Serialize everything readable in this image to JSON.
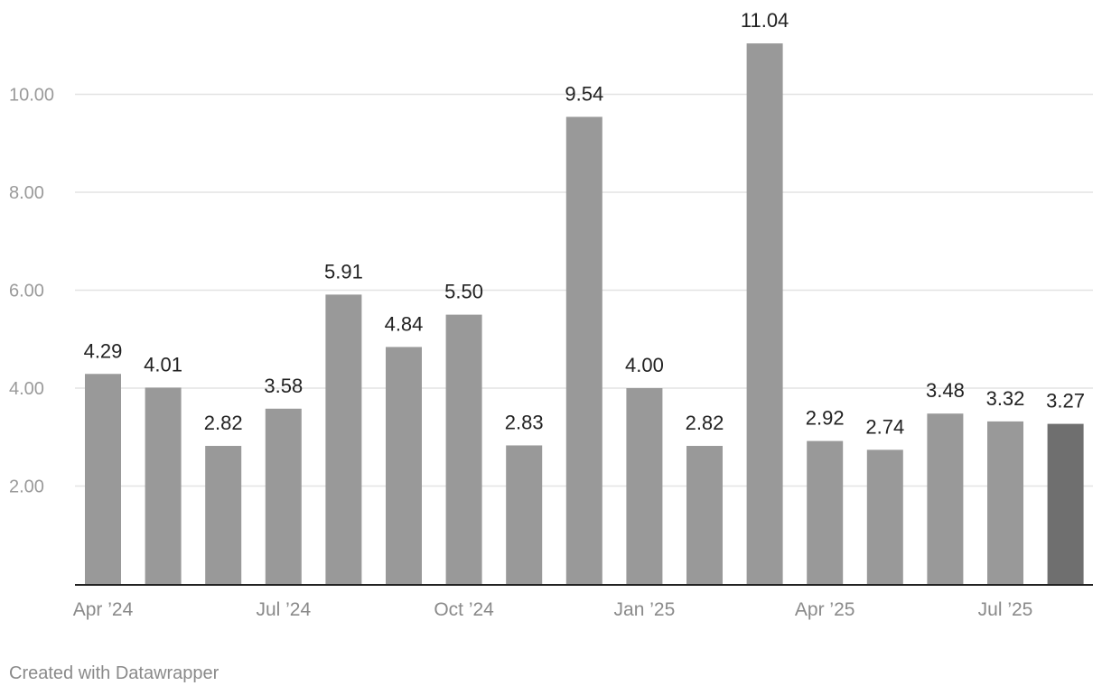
{
  "chart_data": {
    "type": "bar",
    "categories": [
      "Apr 2024",
      "May 2024",
      "Jun 2024",
      "Jul 2024",
      "Aug 2024",
      "Sep 2024",
      "Oct 2024",
      "Nov 2024",
      "Dec 2024",
      "Jan 2025",
      "Feb 2025",
      "Mar 2025",
      "Apr 2025",
      "May 2025",
      "Jun 2025",
      "Jul 2025",
      "Aug 2025"
    ],
    "values": [
      4.29,
      4.01,
      2.82,
      3.58,
      5.91,
      4.84,
      5.5,
      2.83,
      9.54,
      4.0,
      2.82,
      11.04,
      2.92,
      2.74,
      3.48,
      3.32,
      3.27
    ],
    "value_labels": [
      "4.29",
      "4.01",
      "2.82",
      "3.58",
      "5.91",
      "4.84",
      "5.50",
      "2.83",
      "9.54",
      "4.00",
      "2.82",
      "11.04",
      "2.92",
      "2.74",
      "3.48",
      "3.32",
      "3.27"
    ],
    "x_ticks": [
      {
        "label": "Apr ’24",
        "category": 0
      },
      {
        "label": "Jul ’24",
        "category": 3
      },
      {
        "label": "Oct ’24",
        "category": 6
      },
      {
        "label": "Jan ’25",
        "category": 9
      },
      {
        "label": "Apr ’25",
        "category": 12
      },
      {
        "label": "Jul ’25",
        "category": 15
      }
    ],
    "y_ticks": [
      {
        "value": 2,
        "label": "2.00"
      },
      {
        "value": 4,
        "label": "4.00"
      },
      {
        "value": 6,
        "label": "6.00"
      },
      {
        "value": 8,
        "label": "8.00"
      },
      {
        "value": 10,
        "label": "10.00"
      }
    ],
    "ylim": [
      0,
      11.04
    ],
    "grid": true,
    "colors": {
      "bar": "#999999",
      "highlight_bar": "#6f6f6f",
      "gridline": "#e3e3e3",
      "axis_line": "#222222",
      "tick_label": "#9a9a9a",
      "x_tick_label": "#8a8a8a",
      "value_label": "#222222"
    },
    "highlight_index": 16
  },
  "footer": {
    "credit": "Created with Datawrapper"
  }
}
